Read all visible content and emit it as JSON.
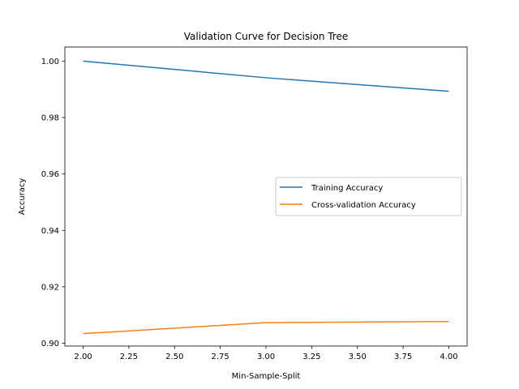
{
  "chart_data": {
    "type": "line",
    "title": "Validation Curve for Decision Tree",
    "xlabel": "Min-Sample-Split",
    "ylabel": "Accuracy",
    "x": [
      2,
      3,
      4
    ],
    "series": [
      {
        "name": "Training Accuracy",
        "values": [
          1.0,
          0.9941,
          0.9893
        ],
        "color": "#1f77b4"
      },
      {
        "name": "Cross-validation Accuracy",
        "values": [
          0.9034,
          0.9073,
          0.9077
        ],
        "color": "#ff7f0e"
      }
    ],
    "xlim": [
      1.9,
      4.1
    ],
    "ylim": [
      0.899,
      1.005
    ],
    "xticks": [
      2.0,
      2.25,
      2.5,
      2.75,
      3.0,
      3.25,
      3.5,
      3.75,
      4.0
    ],
    "xtick_labels": [
      "2.00",
      "2.25",
      "2.50",
      "2.75",
      "3.00",
      "3.25",
      "3.50",
      "3.75",
      "4.00"
    ],
    "yticks": [
      0.9,
      0.92,
      0.94,
      0.96,
      0.98,
      1.0
    ],
    "ytick_labels": [
      "0.90",
      "0.92",
      "0.94",
      "0.96",
      "0.98",
      "1.00"
    ],
    "grid": false,
    "legend_position": "center-right"
  }
}
